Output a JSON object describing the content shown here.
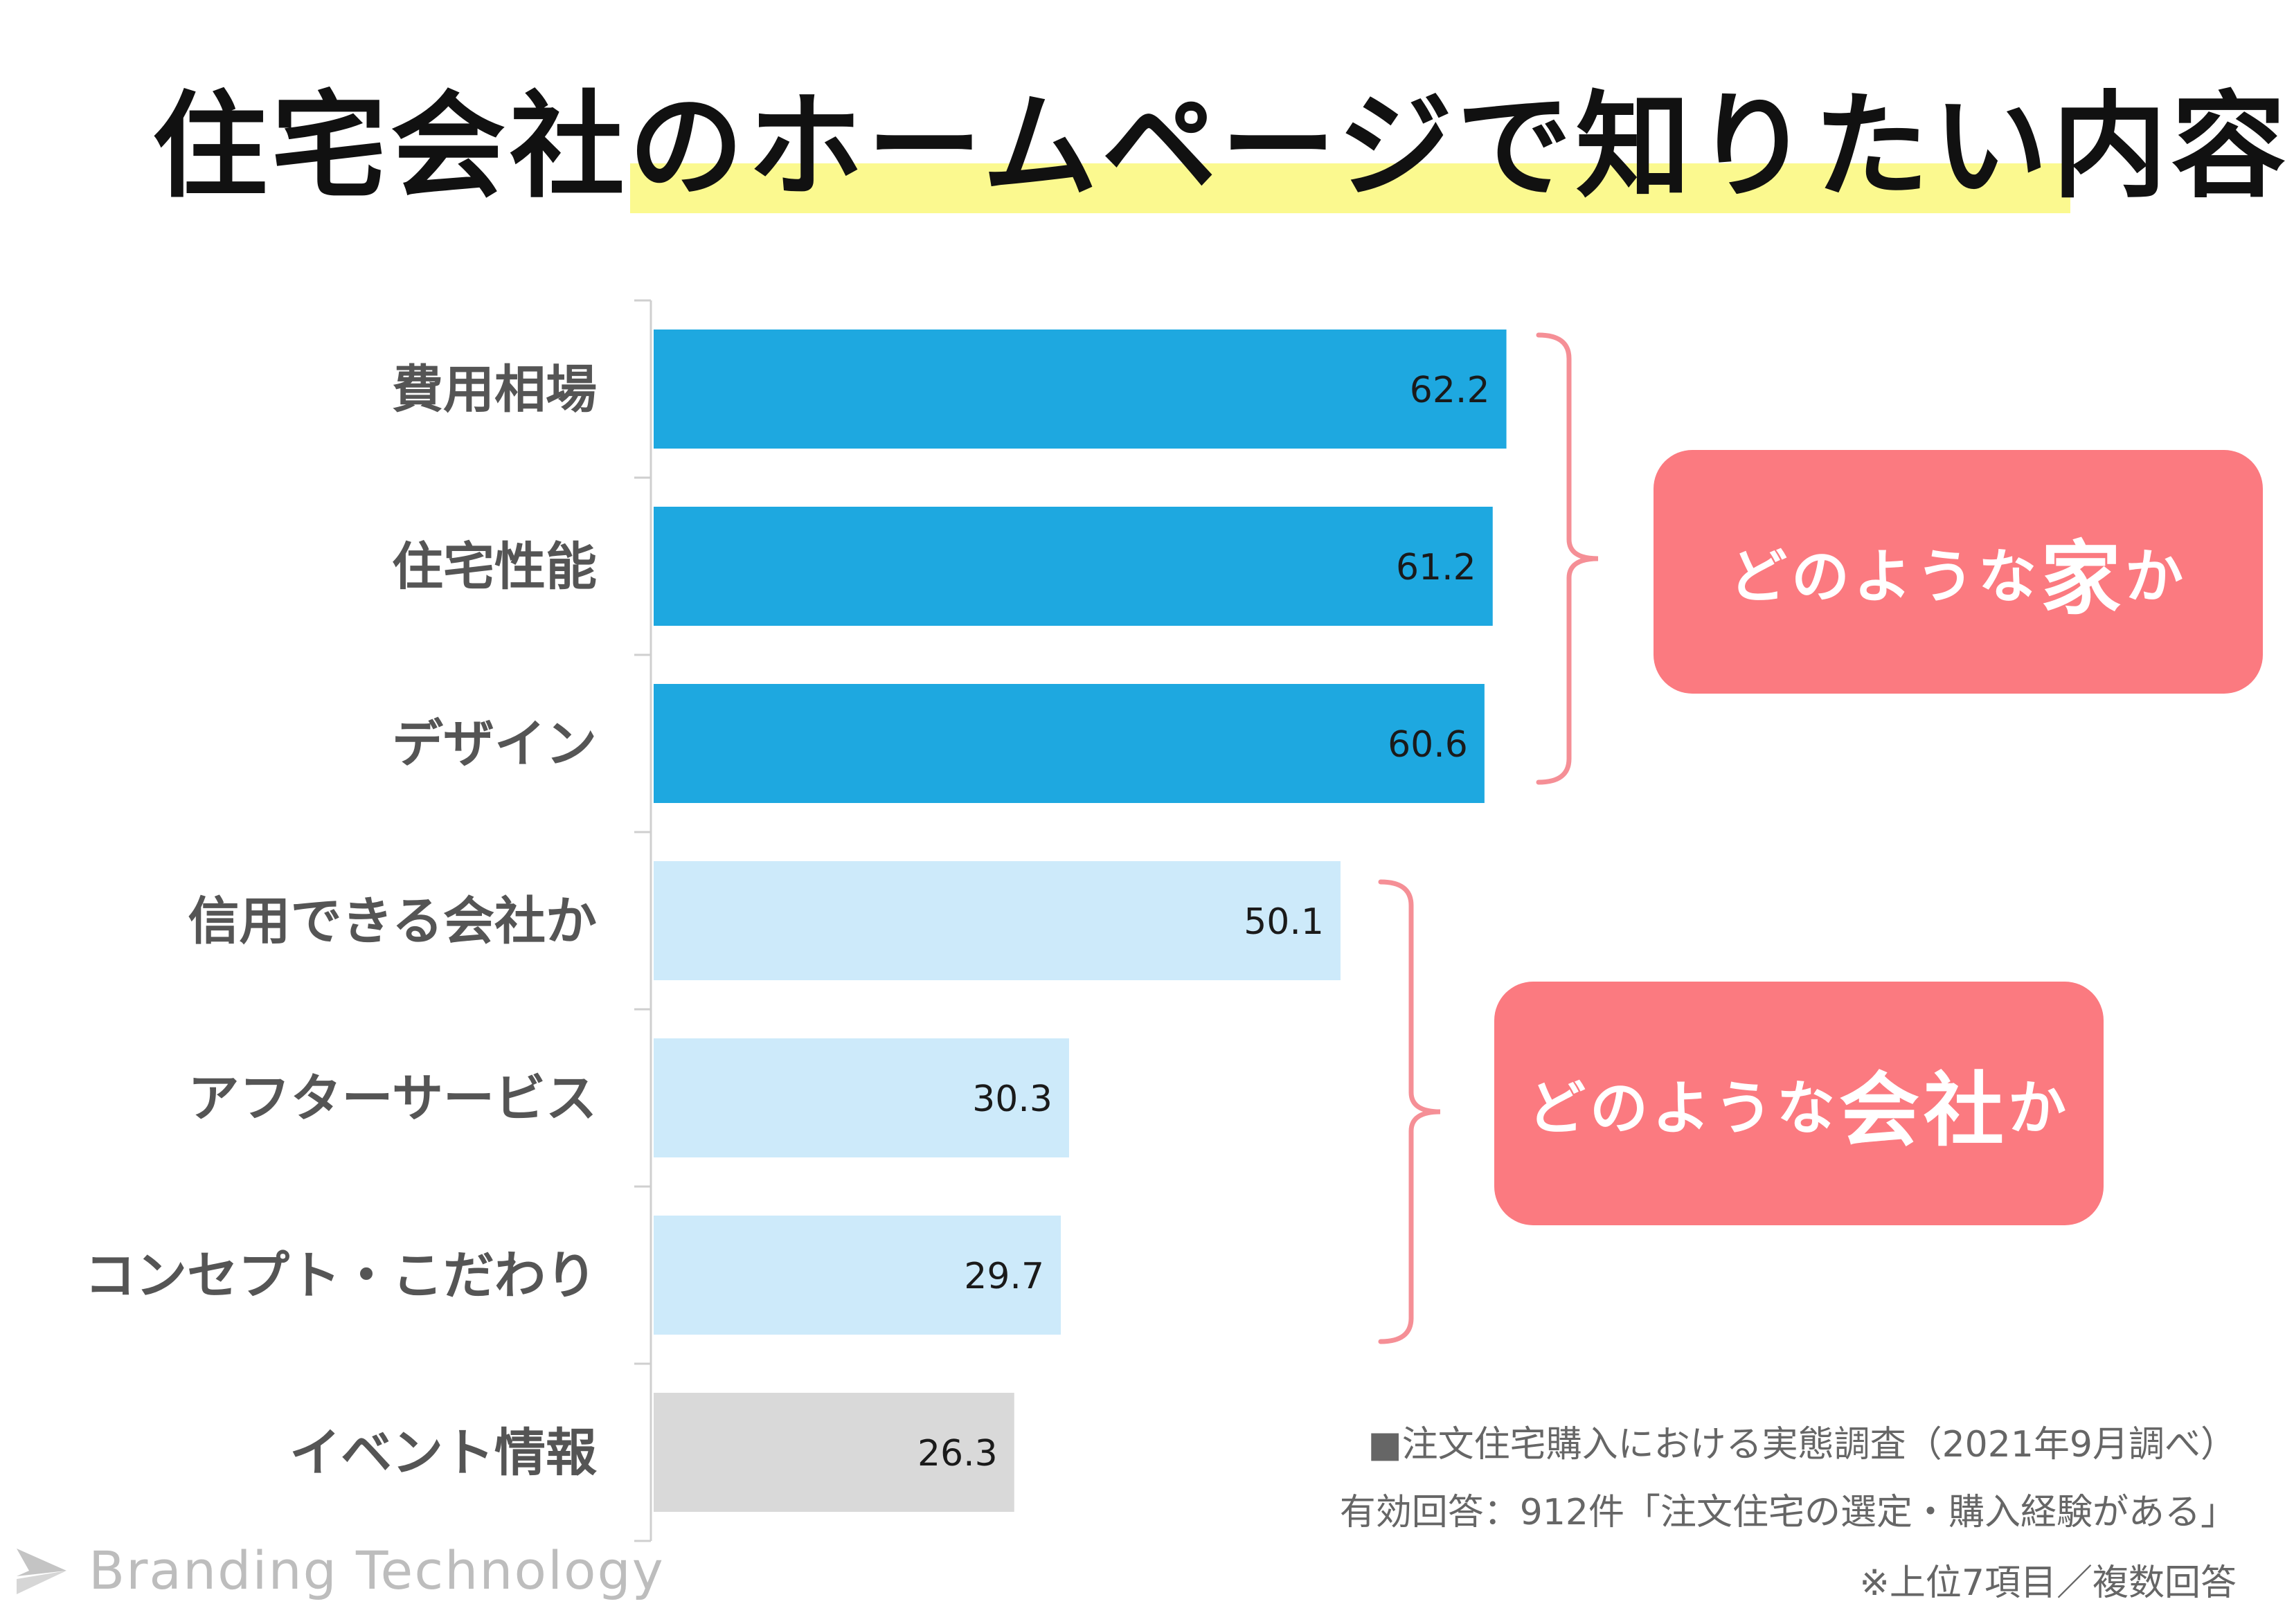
{
  "title": "住宅会社のホームページで知りたい内容",
  "chart_data": {
    "type": "bar",
    "orientation": "horizontal",
    "categories": [
      "費用相場",
      "住宅性能",
      "デザイン",
      "信用できる会社か",
      "アフターサービス",
      "コンセプト・こだわり",
      "イベント情報"
    ],
    "values": [
      62.2,
      61.2,
      60.6,
      50.1,
      30.3,
      29.7,
      26.3
    ],
    "value_labels": [
      "62.2",
      "61.2",
      "60.6",
      "50.1",
      "30.3",
      "29.7",
      "26.3"
    ],
    "bar_colors": [
      "#1ea8e0",
      "#1ea8e0",
      "#1ea8e0",
      "#cdeafa",
      "#cdeafa",
      "#cdeafa",
      "#d9d9d9"
    ],
    "xlim": [
      0,
      100
    ],
    "grid": false,
    "legend": "none"
  },
  "groups": [
    {
      "label_pre": "どのような",
      "label_big": "家",
      "label_post": "か",
      "color": "#fb7a80"
    },
    {
      "label_pre": "どのような",
      "label_big": "会社",
      "label_post": "か",
      "color": "#fb7a80"
    }
  ],
  "source": {
    "line1": "■注文住宅購入における実態調査（2021年9月調べ）",
    "line2": "有効回答：912件「注文住宅の選定・購入経験がある」",
    "line3": "※上位7項目／複数回答"
  },
  "logo": {
    "text": "Branding Technology",
    "icon": "paper-plane-logo-icon"
  }
}
